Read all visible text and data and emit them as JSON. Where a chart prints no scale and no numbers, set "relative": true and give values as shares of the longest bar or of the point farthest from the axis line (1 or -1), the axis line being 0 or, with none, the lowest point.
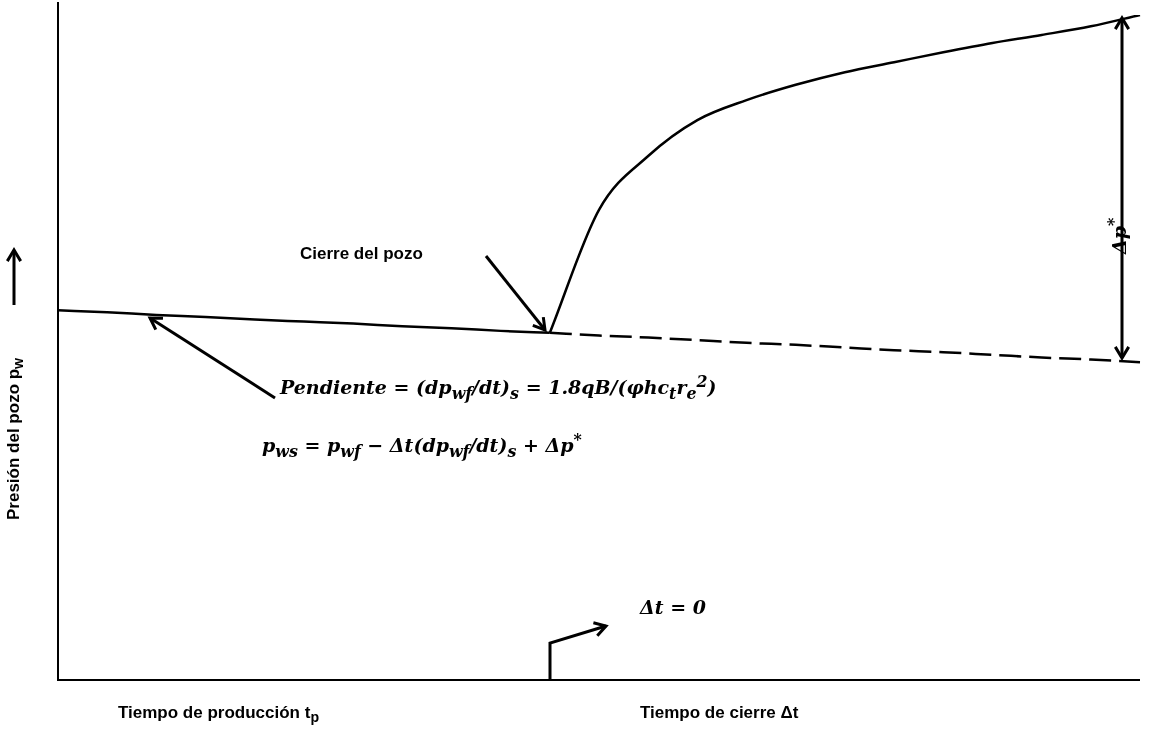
{
  "chart_data": {
    "type": "line",
    "relative": true,
    "marker": "none",
    "legend": false,
    "xlabel": "Tiempo de producción  t$_{p}$",
    "ylabel": "Presión del pozo  p$_{w}$",
    "annotations": [
      "Cierre del pozo",
      "Pendiente = (dp$_{wf}$/dt)$_{s}$ = 1.8qB/(φhc$_{t}$r$_{e}$$^{2}$)",
      "p$_{ws}$ = p$_{wf}$ − Δt(dp$_{wf}$/dt)$_{s}$ + Δp$^{*}$",
      "Δt = 0",
      "Δp$^{*}$",
      "Tiempo de cierre  Δt"
    ],
    "categories": [
      null,
      null,
      null,
      null,
      null,
      null,
      null,
      null,
      null,
      null,
      null,
      null,
      null,
      null,
      null,
      null,
      null,
      null,
      null,
      null,
      null,
      null,
      null
    ],
    "series": [
      {
        "color": "#000000",
        "line_style": "solid",
        "values": [
          0.556,
          0.553,
          0.549,
          0.546,
          0.542,
          0.539,
          0.536,
          0.532,
          0.529,
          0.525,
          0.522,
          null,
          null,
          null,
          null,
          null,
          null,
          null,
          null,
          null,
          null,
          null,
          null
        ]
      },
      {
        "color": "#000000",
        "line_style": "dashed",
        "values": [
          null,
          null,
          null,
          null,
          null,
          null,
          null,
          null,
          null,
          null,
          0.522,
          0.518,
          0.515,
          0.511,
          0.507,
          0.504,
          0.5,
          0.496,
          0.493,
          0.489,
          0.485,
          0.482,
          0.478
        ]
      },
      {
        "color": "#000000",
        "line_style": "solid",
        "values": [
          null,
          null,
          null,
          null,
          null,
          null,
          null,
          null,
          null,
          null,
          0.522,
          0.707,
          0.788,
          0.842,
          0.872,
          0.895,
          0.914,
          0.929,
          0.944,
          0.958,
          0.97,
          0.983,
          1
        ]
      }
    ]
  }
}
